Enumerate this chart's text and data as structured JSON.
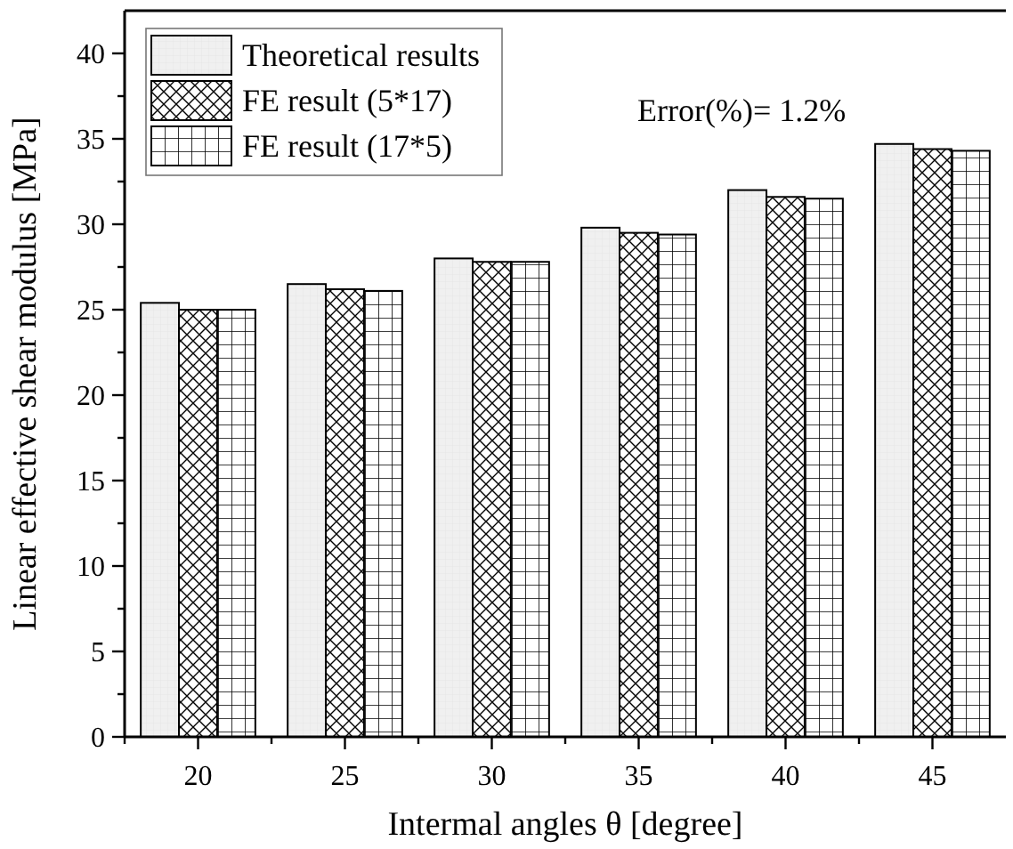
{
  "chart_data": {
    "type": "bar",
    "xlabel": "Intermal angles θ [degree]",
    "ylabel": "Linear effective shear modulus [MPa]",
    "categories": [
      "20",
      "25",
      "30",
      "35",
      "40",
      "45"
    ],
    "series": [
      {
        "name": "Theoretical results",
        "color": "#000000",
        "values": [
          25.4,
          26.5,
          28.0,
          29.8,
          32.0,
          34.7
        ]
      },
      {
        "name": "FE result (5*17)",
        "color": "#000000",
        "values": [
          25.0,
          26.2,
          27.8,
          29.5,
          31.6,
          34.4
        ]
      },
      {
        "name": "FE result (17*5)",
        "color": "#000000",
        "values": [
          25.0,
          26.1,
          27.8,
          29.4,
          31.5,
          34.3
        ]
      }
    ],
    "ylim": [
      0,
      42.5
    ],
    "yticks": [
      0,
      {
        "value": 2.5,
        "label": null
      },
      5,
      {
        "value": 7.5,
        "label": null
      },
      10,
      {
        "value": 12.5,
        "label": null
      },
      15,
      {
        "value": 17.5,
        "label": null
      },
      20,
      {
        "value": 22.5,
        "label": null
      },
      25,
      {
        "value": 27.5,
        "label": null
      },
      30,
      {
        "value": 32.5,
        "label": null
      },
      35,
      {
        "value": 37.5,
        "label": null
      },
      40
    ],
    "annotations": [
      "Error(%)= 1.2%"
    ],
    "legend": "top left",
    "grid": false
  }
}
